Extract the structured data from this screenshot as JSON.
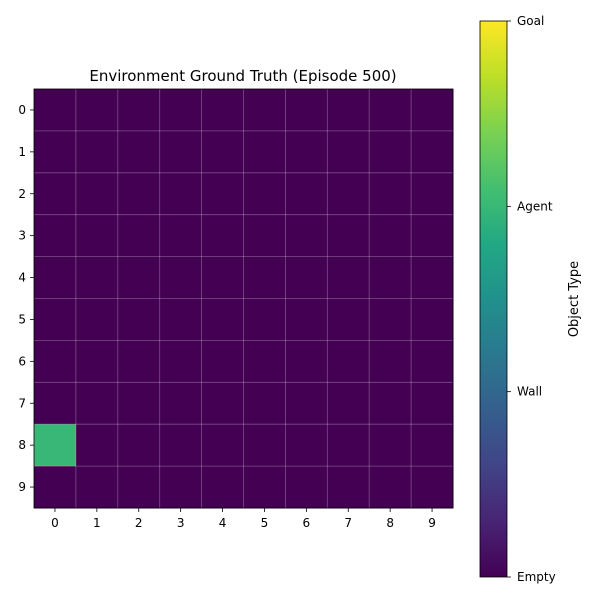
{
  "chart_data": {
    "type": "heatmap",
    "title": "Environment Ground Truth (Episode 500)",
    "x_ticks": [
      "0",
      "1",
      "2",
      "3",
      "4",
      "5",
      "6",
      "7",
      "8",
      "9"
    ],
    "y_ticks": [
      "0",
      "1",
      "2",
      "3",
      "4",
      "5",
      "6",
      "7",
      "8",
      "9"
    ],
    "grid": true,
    "colormap": "viridis",
    "vmin": 0,
    "vmax": 3,
    "values": [
      [
        0,
        0,
        0,
        0,
        0,
        0,
        0,
        0,
        0,
        0
      ],
      [
        0,
        0,
        0,
        0,
        0,
        0,
        0,
        0,
        0,
        0
      ],
      [
        0,
        0,
        0,
        0,
        0,
        0,
        0,
        0,
        0,
        0
      ],
      [
        0,
        0,
        0,
        0,
        0,
        0,
        0,
        0,
        0,
        0
      ],
      [
        0,
        0,
        0,
        0,
        0,
        0,
        0,
        0,
        0,
        0
      ],
      [
        0,
        0,
        0,
        0,
        0,
        0,
        0,
        0,
        0,
        0
      ],
      [
        0,
        0,
        0,
        0,
        0,
        0,
        0,
        0,
        0,
        0
      ],
      [
        0,
        0,
        0,
        0,
        0,
        0,
        0,
        0,
        0,
        0
      ],
      [
        2,
        0,
        0,
        0,
        0,
        0,
        0,
        0,
        0,
        0
      ],
      [
        0,
        0,
        0,
        0,
        0,
        0,
        0,
        0,
        0,
        0
      ]
    ],
    "colorbar": {
      "label": "Object Type",
      "ticks": [
        {
          "value": 0,
          "label": "Empty"
        },
        {
          "value": 1,
          "label": "Wall"
        },
        {
          "value": 2,
          "label": "Agent"
        },
        {
          "value": 3,
          "label": "Goal"
        }
      ]
    }
  }
}
